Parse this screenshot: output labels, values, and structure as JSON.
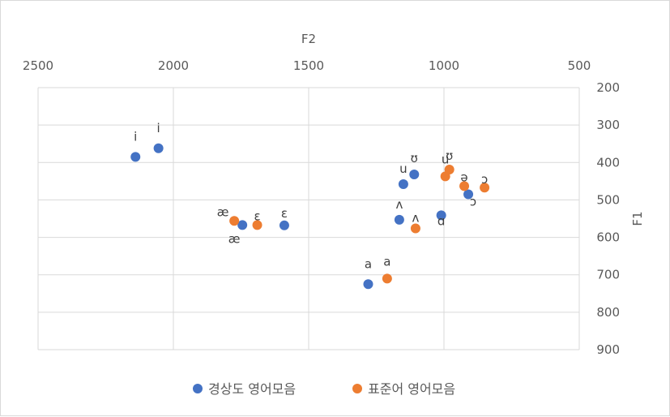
{
  "chart_data": {
    "type": "scatter",
    "title": "",
    "xlabel": "F2",
    "ylabel": "F1",
    "x_reversed": true,
    "y_reversed": true,
    "xlim": [
      500,
      2500
    ],
    "ylim": [
      200,
      900
    ],
    "x_ticks": [
      2500,
      2000,
      1500,
      1000,
      500
    ],
    "y_ticks": [
      200,
      300,
      400,
      500,
      600,
      700,
      800,
      900
    ],
    "x_axis_position": "top",
    "y_axis_position": "right",
    "grid": true,
    "legend_position": "bottom",
    "series": [
      {
        "name": "경상도 영어모음",
        "color": "#4472C4",
        "points": [
          {
            "label": "i",
            "x": 2140,
            "y": 385
          },
          {
            "label": "i",
            "x": 2055,
            "y": 362
          },
          {
            "label": "æ",
            "x": 1745,
            "y": 567
          },
          {
            "label": "ɛ",
            "x": 1590,
            "y": 568
          },
          {
            "label": "a",
            "x": 1280,
            "y": 725
          },
          {
            "label": "ʌ",
            "x": 1165,
            "y": 553
          },
          {
            "label": "u",
            "x": 1150,
            "y": 458
          },
          {
            "label": "ʊ",
            "x": 1110,
            "y": 432
          },
          {
            "label": "ɑ",
            "x": 1010,
            "y": 541
          },
          {
            "label": "ɔ",
            "x": 910,
            "y": 485
          }
        ]
      },
      {
        "name": "표준어 영어모음",
        "color": "#ED7D31",
        "points": [
          {
            "label": "æ",
            "x": 1775,
            "y": 556
          },
          {
            "label": "ɛ",
            "x": 1690,
            "y": 567
          },
          {
            "label": "a",
            "x": 1210,
            "y": 710
          },
          {
            "label": "ʌ",
            "x": 1105,
            "y": 576
          },
          {
            "label": "u",
            "x": 995,
            "y": 437
          },
          {
            "label": "ʊ",
            "x": 980,
            "y": 419
          },
          {
            "label": "ə",
            "x": 925,
            "y": 463
          },
          {
            "label": "ɔ",
            "x": 850,
            "y": 467
          }
        ]
      }
    ]
  }
}
